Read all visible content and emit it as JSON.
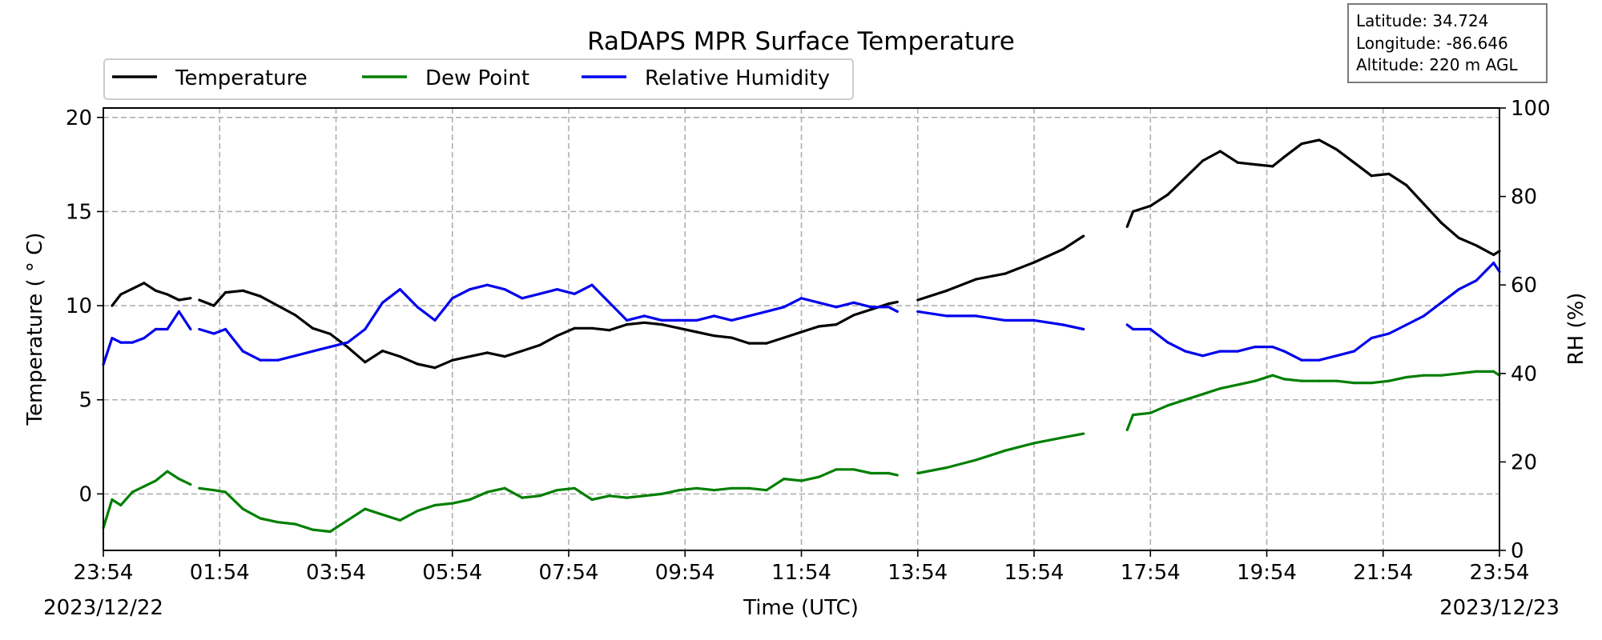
{
  "info_box": {
    "latitude": "Latitude: 34.724",
    "longitude": "Longitude: -86.646",
    "altitude": "Altitude: 220 m AGL"
  },
  "chart_data": {
    "type": "line",
    "title": "RaDAPS MPR Surface Temperature",
    "xlabel": "Time (UTC)",
    "ylabel": "Temperature ($^\\circ$C)",
    "ylabel_display": "Temperature ( ° C)",
    "y2label": "RH (%)",
    "x_tick_labels": [
      "23:54",
      "01:54",
      "03:54",
      "05:54",
      "07:54",
      "09:54",
      "11:54",
      "13:54",
      "15:54",
      "17:54",
      "19:54",
      "21:54",
      "23:54"
    ],
    "x_tick_hours": [
      0,
      2,
      4,
      6,
      8,
      10,
      12,
      14,
      16,
      18,
      20,
      22,
      24
    ],
    "date_start": "2023/12/22",
    "date_end": "2023/12/23",
    "xlim_hours": [
      0,
      24
    ],
    "ylim": [
      -3,
      20.5
    ],
    "y_ticks": [
      0,
      5,
      10,
      15,
      20
    ],
    "y2lim": [
      0,
      100
    ],
    "y2_ticks": [
      0,
      20,
      40,
      60,
      80,
      100
    ],
    "grid": true,
    "legend_placement": "upper-left",
    "gaps_hours": [
      [
        1.5,
        1.65
      ],
      [
        13.65,
        14.0
      ],
      [
        16.85,
        17.6
      ]
    ],
    "dashed_hours": [
      [
        13.6,
        14.0
      ]
    ],
    "series": [
      {
        "name": "Temperature",
        "color": "#000000",
        "axis": "left",
        "x": [
          0.15,
          0.3,
          0.5,
          0.7,
          0.9,
          1.1,
          1.3,
          1.5,
          1.65,
          1.9,
          2.1,
          2.4,
          2.7,
          3.0,
          3.3,
          3.6,
          3.9,
          4.2,
          4.5,
          4.8,
          5.1,
          5.4,
          5.7,
          6.0,
          6.3,
          6.6,
          6.9,
          7.2,
          7.5,
          7.8,
          8.1,
          8.4,
          8.7,
          9.0,
          9.3,
          9.6,
          9.9,
          10.2,
          10.5,
          10.8,
          11.1,
          11.4,
          11.7,
          12.0,
          12.3,
          12.6,
          12.9,
          13.2,
          13.5,
          13.65,
          14.0,
          14.5,
          15.0,
          15.5,
          16.0,
          16.5,
          16.85,
          17.6,
          17.7,
          18.0,
          18.3,
          18.6,
          18.9,
          19.2,
          19.5,
          19.8,
          20.1,
          20.3,
          20.6,
          20.9,
          21.2,
          21.5,
          21.8,
          22.1,
          22.4,
          22.7,
          23.0,
          23.3,
          23.6,
          23.9,
          24.0
        ],
        "values": [
          10.0,
          10.6,
          10.9,
          11.2,
          10.8,
          10.6,
          10.3,
          10.4,
          10.3,
          10.0,
          10.7,
          10.8,
          10.5,
          10.0,
          9.5,
          8.8,
          8.5,
          7.8,
          7.0,
          7.6,
          7.3,
          6.9,
          6.7,
          7.1,
          7.3,
          7.5,
          7.3,
          7.6,
          7.9,
          8.4,
          8.8,
          8.8,
          8.7,
          9.0,
          9.1,
          9.0,
          8.8,
          8.6,
          8.4,
          8.3,
          8.0,
          8.0,
          8.3,
          8.6,
          8.9,
          9.0,
          9.5,
          9.8,
          10.1,
          10.2,
          10.3,
          10.8,
          11.4,
          11.7,
          12.3,
          13.0,
          13.7,
          14.2,
          15.0,
          15.3,
          15.9,
          16.8,
          17.7,
          18.2,
          17.6,
          17.5,
          17.4,
          17.9,
          18.6,
          18.8,
          18.3,
          17.6,
          16.9,
          17.0,
          16.4,
          15.4,
          14.4,
          13.6,
          13.2,
          12.7,
          12.9
        ]
      },
      {
        "name": "Dew Point",
        "color": "#007f00",
        "axis": "left",
        "x": [
          0.0,
          0.15,
          0.3,
          0.5,
          0.7,
          0.9,
          1.1,
          1.3,
          1.5,
          1.65,
          1.9,
          2.1,
          2.4,
          2.7,
          3.0,
          3.3,
          3.6,
          3.9,
          4.2,
          4.5,
          4.8,
          5.1,
          5.4,
          5.7,
          6.0,
          6.3,
          6.6,
          6.9,
          7.2,
          7.5,
          7.8,
          8.1,
          8.4,
          8.7,
          9.0,
          9.3,
          9.6,
          9.9,
          10.2,
          10.5,
          10.8,
          11.1,
          11.4,
          11.7,
          12.0,
          12.3,
          12.6,
          12.9,
          13.2,
          13.5,
          13.65,
          14.0,
          14.5,
          15.0,
          15.5,
          16.0,
          16.5,
          16.85,
          17.6,
          17.7,
          18.0,
          18.3,
          18.6,
          18.9,
          19.2,
          19.5,
          19.8,
          20.1,
          20.3,
          20.6,
          20.9,
          21.2,
          21.5,
          21.8,
          22.1,
          22.4,
          22.7,
          23.0,
          23.3,
          23.6,
          23.9,
          24.0
        ],
        "values": [
          -1.8,
          -0.3,
          -0.6,
          0.1,
          0.4,
          0.7,
          1.2,
          0.8,
          0.5,
          0.3,
          0.2,
          0.1,
          -0.8,
          -1.3,
          -1.5,
          -1.6,
          -1.9,
          -2.0,
          -1.4,
          -0.8,
          -1.1,
          -1.4,
          -0.9,
          -0.6,
          -0.5,
          -0.3,
          0.1,
          0.3,
          -0.2,
          -0.1,
          0.2,
          0.3,
          -0.3,
          -0.1,
          -0.2,
          -0.1,
          0.0,
          0.2,
          0.3,
          0.2,
          0.3,
          0.3,
          0.2,
          0.8,
          0.7,
          0.9,
          1.3,
          1.3,
          1.1,
          1.1,
          1.0,
          1.1,
          1.4,
          1.8,
          2.3,
          2.7,
          3.0,
          3.2,
          3.4,
          4.2,
          4.3,
          4.7,
          5.0,
          5.3,
          5.6,
          5.8,
          6.0,
          6.3,
          6.1,
          6.0,
          6.0,
          6.0,
          5.9,
          5.9,
          6.0,
          6.2,
          6.3,
          6.3,
          6.4,
          6.5,
          6.5,
          6.3
        ]
      },
      {
        "name": "Relative Humidity",
        "color": "#0000ee",
        "axis": "right",
        "x": [
          0.0,
          0.15,
          0.3,
          0.5,
          0.7,
          0.9,
          1.1,
          1.3,
          1.5,
          1.65,
          1.9,
          2.1,
          2.4,
          2.7,
          3.0,
          3.3,
          3.6,
          3.9,
          4.2,
          4.5,
          4.8,
          5.1,
          5.4,
          5.7,
          6.0,
          6.3,
          6.6,
          6.9,
          7.2,
          7.5,
          7.8,
          8.1,
          8.4,
          8.7,
          9.0,
          9.3,
          9.6,
          9.9,
          10.2,
          10.5,
          10.8,
          11.1,
          11.4,
          11.7,
          12.0,
          12.3,
          12.6,
          12.9,
          13.2,
          13.5,
          13.65,
          14.0,
          14.5,
          15.0,
          15.5,
          16.0,
          16.5,
          16.85,
          17.6,
          17.7,
          18.0,
          18.3,
          18.6,
          18.9,
          19.2,
          19.5,
          19.8,
          20.1,
          20.3,
          20.6,
          20.9,
          21.2,
          21.5,
          21.8,
          22.1,
          22.4,
          22.7,
          23.0,
          23.3,
          23.6,
          23.9,
          24.0
        ],
        "values": [
          42,
          48,
          47,
          47,
          48,
          50,
          50,
          54,
          50,
          50,
          49,
          50,
          45,
          43,
          43,
          44,
          45,
          46,
          47,
          50,
          56,
          59,
          55,
          52,
          57,
          59,
          60,
          59,
          57,
          58,
          59,
          58,
          60,
          56,
          52,
          53,
          52,
          52,
          52,
          53,
          52,
          53,
          54,
          55,
          57,
          56,
          55,
          56,
          55,
          55,
          54,
          54,
          53,
          53,
          52,
          52,
          51,
          50,
          51,
          50,
          50,
          47,
          45,
          44,
          45,
          45,
          46,
          46,
          45,
          43,
          43,
          44,
          45,
          48,
          49,
          51,
          53,
          56,
          59,
          61,
          65,
          63
        ]
      }
    ]
  }
}
